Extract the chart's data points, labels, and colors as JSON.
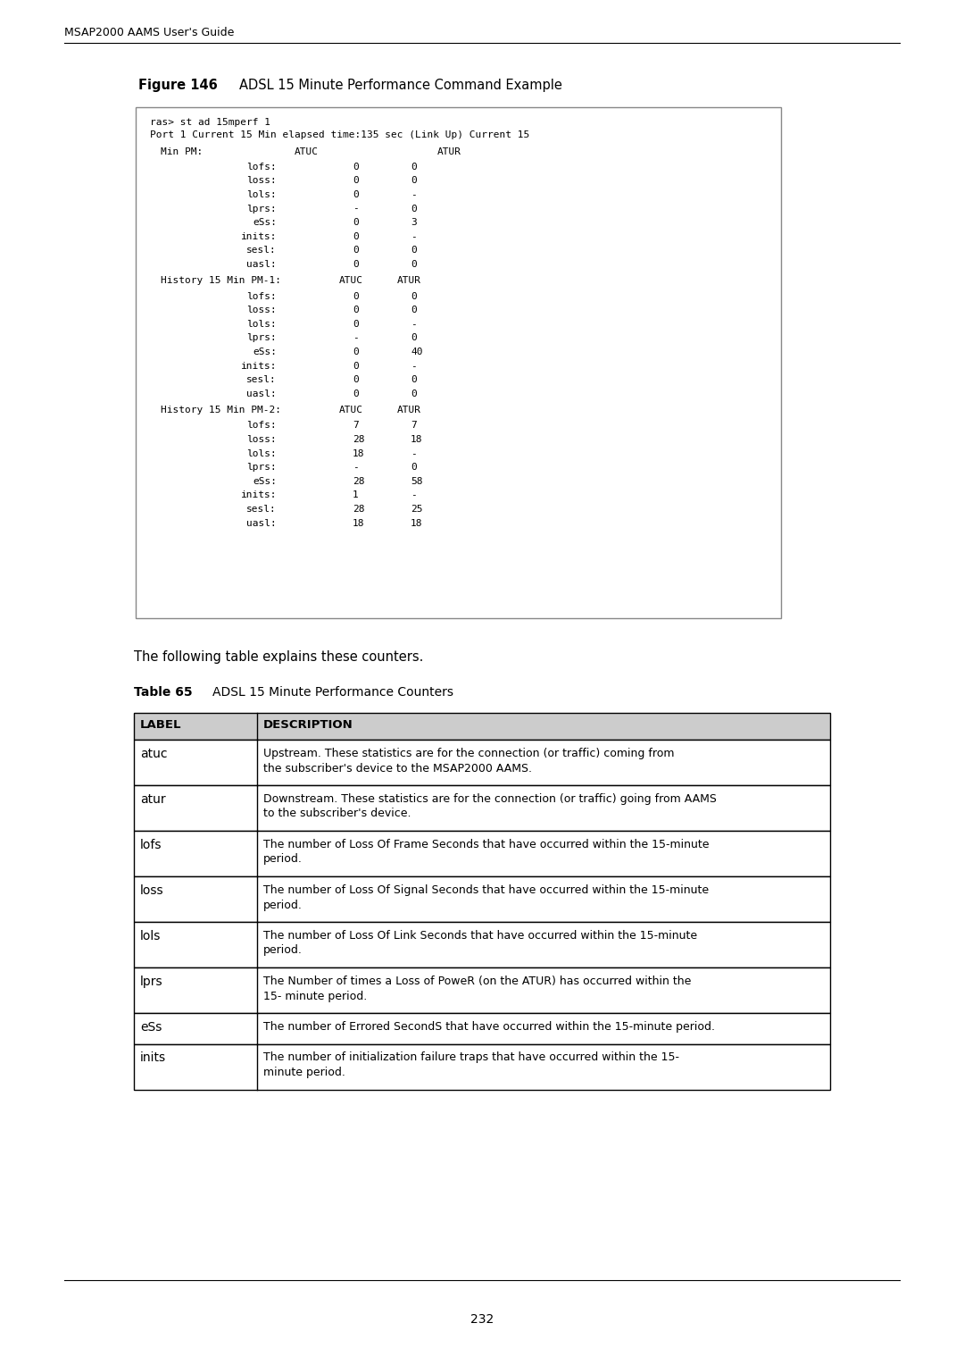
{
  "page_header": "MSAP2000 AAMS User's Guide",
  "figure_label": "Figure 146",
  "figure_title": "ADSL 15 Minute Performance Command Example",
  "body_text": "The following table explains these counters.",
  "table_label": "Table 65",
  "table_title": "ADSL 15 Minute Performance Counters",
  "table_header": [
    "LABEL",
    "DESCRIPTION"
  ],
  "table_rows": [
    [
      "atuc",
      "Upstream. These statistics are for the connection (or traffic) coming from\nthe subscriber's device to the MSAP2000 AAMS."
    ],
    [
      "atur",
      "Downstream. These statistics are for the connection (or traffic) going from AAMS\nto the subscriber's device."
    ],
    [
      "lofs",
      "The number of Loss Of Frame Seconds that have occurred within the 15-minute\nperiod."
    ],
    [
      "loss",
      "The number of Loss Of Signal Seconds that have occurred within the 15-minute\nperiod."
    ],
    [
      "lols",
      "The number of Loss Of Link Seconds that have occurred within the 15-minute\nperiod."
    ],
    [
      "lprs",
      "The Number of times a Loss of PoweR (on the ATUR) has occurred within the\n15- minute period."
    ],
    [
      "eSs",
      "The number of Errored SecondS that have occurred within the 15-minute period."
    ],
    [
      "inits",
      "The number of initialization failure traps that have occurred within the 15-\nminute period."
    ]
  ],
  "page_number": "232",
  "bg_color": "#ffffff",
  "table_header_bg": "#cccccc",
  "table_border_color": "#000000",
  "code_box_border": "#888888",
  "header_line_color": "#000000"
}
